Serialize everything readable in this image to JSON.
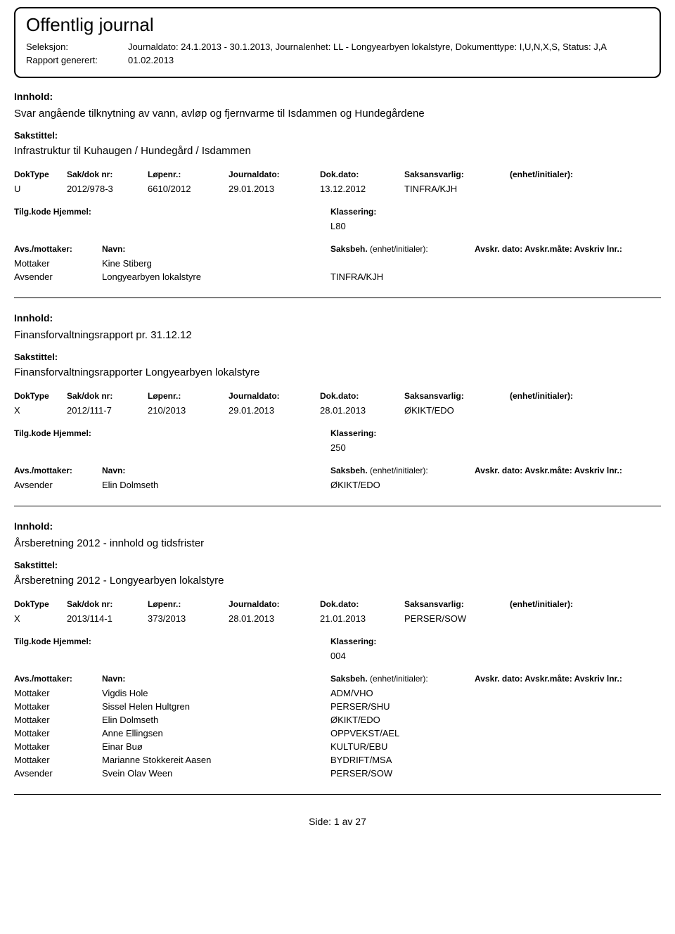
{
  "header": {
    "title": "Offentlig journal",
    "seleksjon_label": "Seleksjon:",
    "seleksjon_value": "Journaldato: 24.1.2013 - 30.1.2013, Journalenhet: LL - Longyearbyen lokalstyre, Dokumenttype: I,U,N,X,S, Status: J,A",
    "rapport_label": "Rapport generert:",
    "rapport_value": "01.02.2013"
  },
  "labels": {
    "innhold": "Innhold:",
    "sakstittel": "Sakstittel:",
    "doktype": "DokType",
    "sakdok": "Sak/dok nr:",
    "lopenr": "Løpenr.:",
    "journaldato": "Journaldato:",
    "dokdato": "Dok.dato:",
    "saksansvarlig": "Saksansvarlig:",
    "enhet": "(enhet/initialer):",
    "tilgkode": "Tilg.kode",
    "hjemmel": "Hjemmel:",
    "klassering": "Klassering:",
    "avsmottaker": "Avs./mottaker:",
    "navn": "Navn:",
    "saksbeh": "Saksbeh.",
    "avskr": "Avskr. dato:  Avskr.måte:  Avskriv lnr.:",
    "mottaker": "Mottaker",
    "avsender": "Avsender"
  },
  "entries": [
    {
      "innhold": "Svar angående tilknytning av vann, avløp og fjernvarme til Isdammen og Hundegårdene",
      "sakstittel": "Infrastruktur til Kuhaugen / Hundegård / Isdammen",
      "doktype": "U",
      "sakdok": "2012/978-3",
      "lopenr": "6610/2012",
      "journaldato": "29.01.2013",
      "dokdato": "13.12.2012",
      "saksansvarlig": "TINFRA/KJH",
      "klassering": "L80",
      "parties": [
        {
          "role": "Mottaker",
          "name": "Kine Stiberg",
          "dept": ""
        },
        {
          "role": "Avsender",
          "name": "Longyearbyen lokalstyre",
          "dept": "TINFRA/KJH"
        }
      ]
    },
    {
      "innhold": "Finansforvaltningsrapport pr. 31.12.12",
      "sakstittel": "Finansforvaltningsrapporter Longyearbyen lokalstyre",
      "doktype": "X",
      "sakdok": "2012/111-7",
      "lopenr": "210/2013",
      "journaldato": "29.01.2013",
      "dokdato": "28.01.2013",
      "saksansvarlig": "ØKIKT/EDO",
      "klassering": "250",
      "parties": [
        {
          "role": "Avsender",
          "name": "Elin Dolmseth",
          "dept": "ØKIKT/EDO"
        }
      ]
    },
    {
      "innhold": "Årsberetning 2012 - innhold og tidsfrister",
      "sakstittel": "Årsberetning 2012 - Longyearbyen lokalstyre",
      "doktype": "X",
      "sakdok": "2013/114-1",
      "lopenr": "373/2013",
      "journaldato": "28.01.2013",
      "dokdato": "21.01.2013",
      "saksansvarlig": "PERSER/SOW",
      "klassering": "004",
      "parties": [
        {
          "role": "Mottaker",
          "name": "Vigdis Hole",
          "dept": "ADM/VHO"
        },
        {
          "role": "Mottaker",
          "name": "Sissel Helen Hultgren",
          "dept": "PERSER/SHU"
        },
        {
          "role": "Mottaker",
          "name": "Elin Dolmseth",
          "dept": "ØKIKT/EDO"
        },
        {
          "role": "Mottaker",
          "name": "Anne Ellingsen",
          "dept": "OPPVEKST/AEL"
        },
        {
          "role": "Mottaker",
          "name": "Einar Buø",
          "dept": "KULTUR/EBU"
        },
        {
          "role": "Mottaker",
          "name": "Marianne Stokkereit Aasen",
          "dept": "BYDRIFT/MSA"
        },
        {
          "role": "Avsender",
          "name": "Svein Olav Ween",
          "dept": "PERSER/SOW"
        }
      ]
    }
  ],
  "footer": {
    "side": "Side:",
    "page": "1",
    "av": "av",
    "total": "27"
  }
}
